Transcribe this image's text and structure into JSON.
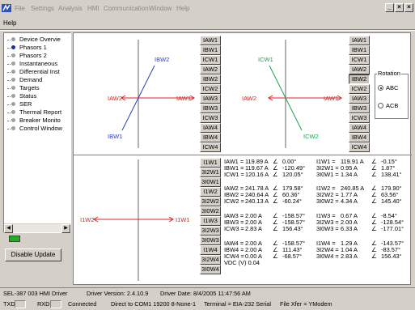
{
  "menu": {
    "items": [
      "File",
      "Settings",
      "Analysis",
      "HMI",
      "Communication",
      "Window",
      "Help"
    ],
    "help_label": "Help"
  },
  "window_controls": {
    "minimize": "_",
    "restore": "×",
    "close": "×"
  },
  "tree": {
    "items": [
      {
        "label": "Device Overvie",
        "selected": false
      },
      {
        "label": "Phasors 1",
        "selected": true
      },
      {
        "label": "Phasors 2",
        "selected": false
      },
      {
        "label": "Instantaneous",
        "selected": false
      },
      {
        "label": "Differential Inst",
        "selected": false
      },
      {
        "label": "Demand",
        "selected": false
      },
      {
        "label": "Targets",
        "selected": false
      },
      {
        "label": "Status",
        "selected": false
      },
      {
        "label": "SER",
        "selected": false
      },
      {
        "label": "Thermal Report",
        "selected": false
      },
      {
        "label": "Breaker Monito",
        "selected": false
      },
      {
        "label": "Control Window",
        "selected": false
      }
    ]
  },
  "disable_update_label": "Disable Update",
  "plots": {
    "p1": {
      "labels": {
        "IAW2": "IAW2",
        "IAW1": "IAW1",
        "IBW2": "IBW2",
        "IBW1": "IBW1"
      }
    },
    "p2": {
      "labels": {
        "IAW2": "IAW2",
        "IAW1": "IAW1",
        "ICW1": "ICW1",
        "ICW2": "ICW2"
      }
    },
    "p3": {
      "labels": {
        "I1W2": "I1W2",
        "I1W1": "I1W1"
      }
    }
  },
  "buttons": {
    "col1": [
      "IAW1",
      "IBW1",
      "ICW1",
      "IAW2",
      "IBW2",
      "ICW2",
      "IAW3",
      "IBW3",
      "ICW3",
      "IAW4",
      "IBW4",
      "ICW4"
    ],
    "col2": [
      "IAW1",
      "IBW1",
      "ICW1",
      "IAW2",
      "IBW2",
      "ICW2",
      "IAW3",
      "IBW3",
      "ICW3",
      "IAW4",
      "IBW4",
      "ICW4"
    ],
    "col3": [
      "I1W1",
      "3I2W1",
      "3I0W1",
      "I1W2",
      "3I2W2",
      "3I0W2",
      "I1W3",
      "3I2W3",
      "3I0W3",
      "I1W4",
      "3I2W4",
      "3I0W4"
    ]
  },
  "rotation": {
    "title": "Rotation",
    "options": [
      "ABC",
      "ACB"
    ],
    "selected": "ABC"
  },
  "measurements": {
    "left": [
      [
        [
          "IAW1 =",
          "119.89 A",
          "0.00°"
        ],
        [
          "IBW1 =",
          "119.67 A",
          "-120.49°"
        ],
        [
          "ICW1 =",
          "120.16 A",
          "120.05°"
        ]
      ],
      [
        [
          "IAW2 =",
          "241.78 A",
          "179.58°"
        ],
        [
          "IBW2 =",
          "240.64 A",
          "60.36°"
        ],
        [
          "ICW2 =",
          "240.13 A",
          "-60.24°"
        ]
      ],
      [
        [
          "IAW3 =",
          "2.00 A",
          "-158.57°"
        ],
        [
          "IBW3 =",
          "2.00 A",
          "-158.57°"
        ],
        [
          "ICW3 =",
          "2.83 A",
          "156.43°"
        ]
      ],
      [
        [
          "IAW4 =",
          "2.00 A",
          "-158.57°"
        ],
        [
          "IBW4 =",
          "2.00 A",
          "111.43°"
        ],
        [
          "ICW4 =",
          "0.00 A",
          "-68.57°"
        ]
      ]
    ],
    "right": [
      [
        [
          "I1W1 =",
          "119.91 A",
          "-0.15°"
        ],
        [
          "3I2W1 =",
          "0.95 A",
          "1.87°"
        ],
        [
          "3I0W1 =",
          "1.34 A",
          "138.41°"
        ]
      ],
      [
        [
          "I1W2 =",
          "240.85 A",
          "179.90°"
        ],
        [
          "3I2W2 =",
          "1.77 A",
          "63.56°"
        ],
        [
          "3I0W2 =",
          "4.34 A",
          "145.40°"
        ]
      ],
      [
        [
          "I1W3 =",
          "0.67 A",
          "-8.54°"
        ],
        [
          "3I2W3 =",
          "2.00 A",
          "-128.54°"
        ],
        [
          "3I0W3 =",
          "6.33 A",
          "-177.01°"
        ]
      ],
      [
        [
          "I1W4 =",
          "1.29 A",
          "-143.57°"
        ],
        [
          "3I2W4 =",
          "1.04 A",
          "-83.57°"
        ],
        [
          "3I0W4 =",
          "2.83 A",
          "156.43°"
        ]
      ]
    ],
    "vdc": "VDC (V)  0.04"
  },
  "status": {
    "device": "SEL-387 003 HMI Driver",
    "driver_version": "Driver Version: 2.4.10.9",
    "driver_date": "Driver Date: 8/4/2005 11:47:56 AM",
    "txd": "TXD",
    "rxd": "RXD",
    "connection": "Connected",
    "port": "Direct to COM1  19200  8-None-1",
    "terminal": "Terminal = EIA-232 Serial",
    "file_xfer": "File Xfer = YModem"
  },
  "colors": {
    "phase_a": "#e02020",
    "phase_b": "#3040c0",
    "phase_c": "#20a050",
    "led": "#1fb020"
  }
}
